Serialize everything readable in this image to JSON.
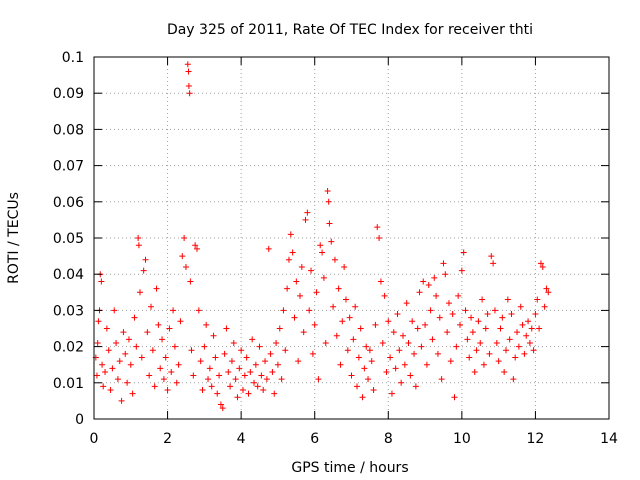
{
  "chart_data": {
    "type": "scatter",
    "title": "Day 325 of 2011, Rate Of TEC Index for receiver thti",
    "xlabel": "GPS time / hours",
    "ylabel": "ROTI / TECUs",
    "xlim": [
      0,
      14
    ],
    "ylim": [
      0,
      0.1
    ],
    "xticks": [
      "0",
      "2",
      "4",
      "6",
      "8",
      "10",
      "12",
      "14"
    ],
    "yticks": [
      "0",
      "0.01",
      "0.02",
      "0.03",
      "0.04",
      "0.05",
      "0.06",
      "0.07",
      "0.08",
      "0.09",
      "0.1"
    ],
    "grid": true,
    "marker": "plus",
    "color": "#ff0000",
    "series": [
      {
        "name": "ROTI",
        "points": [
          [
            0.05,
            0.017
          ],
          [
            0.08,
            0.012
          ],
          [
            0.1,
            0.021
          ],
          [
            0.12,
            0.027
          ],
          [
            0.15,
            0.03
          ],
          [
            0.17,
            0.04
          ],
          [
            0.2,
            0.038
          ],
          [
            0.22,
            0.015
          ],
          [
            0.25,
            0.009
          ],
          [
            0.3,
            0.013
          ],
          [
            0.35,
            0.025
          ],
          [
            0.4,
            0.019
          ],
          [
            0.45,
            0.008
          ],
          [
            0.5,
            0.014
          ],
          [
            0.55,
            0.03
          ],
          [
            0.6,
            0.021
          ],
          [
            0.65,
            0.011
          ],
          [
            0.7,
            0.016
          ],
          [
            0.75,
            0.005
          ],
          [
            0.8,
            0.024
          ],
          [
            0.85,
            0.018
          ],
          [
            0.9,
            0.01
          ],
          [
            0.95,
            0.022
          ],
          [
            1.0,
            0.015
          ],
          [
            1.05,
            0.007
          ],
          [
            1.1,
            0.028
          ],
          [
            1.15,
            0.02
          ],
          [
            1.2,
            0.05
          ],
          [
            1.22,
            0.048
          ],
          [
            1.25,
            0.035
          ],
          [
            1.3,
            0.017
          ],
          [
            1.35,
            0.041
          ],
          [
            1.4,
            0.044
          ],
          [
            1.45,
            0.024
          ],
          [
            1.5,
            0.012
          ],
          [
            1.55,
            0.031
          ],
          [
            1.6,
            0.019
          ],
          [
            1.65,
            0.009
          ],
          [
            1.7,
            0.036
          ],
          [
            1.75,
            0.026
          ],
          [
            1.8,
            0.014
          ],
          [
            1.85,
            0.022
          ],
          [
            1.9,
            0.011
          ],
          [
            1.95,
            0.017
          ],
          [
            2.0,
            0.008
          ],
          [
            2.05,
            0.025
          ],
          [
            2.1,
            0.013
          ],
          [
            2.15,
            0.03
          ],
          [
            2.2,
            0.02
          ],
          [
            2.25,
            0.01
          ],
          [
            2.3,
            0.015
          ],
          [
            2.35,
            0.027
          ],
          [
            2.4,
            0.045
          ],
          [
            2.45,
            0.05
          ],
          [
            2.5,
            0.042
          ],
          [
            2.55,
            0.098
          ],
          [
            2.57,
            0.096
          ],
          [
            2.58,
            0.092
          ],
          [
            2.6,
            0.09
          ],
          [
            2.62,
            0.038
          ],
          [
            2.65,
            0.019
          ],
          [
            2.7,
            0.012
          ],
          [
            2.75,
            0.048
          ],
          [
            2.8,
            0.047
          ],
          [
            2.85,
            0.03
          ],
          [
            2.9,
            0.016
          ],
          [
            2.95,
            0.008
          ],
          [
            3.0,
            0.02
          ],
          [
            3.05,
            0.026
          ],
          [
            3.1,
            0.011
          ],
          [
            3.15,
            0.014
          ],
          [
            3.2,
            0.009
          ],
          [
            3.25,
            0.023
          ],
          [
            3.3,
            0.017
          ],
          [
            3.35,
            0.007
          ],
          [
            3.4,
            0.012
          ],
          [
            3.45,
            0.004
          ],
          [
            3.5,
            0.003
          ],
          [
            3.55,
            0.018
          ],
          [
            3.6,
            0.025
          ],
          [
            3.65,
            0.013
          ],
          [
            3.7,
            0.009
          ],
          [
            3.75,
            0.016
          ],
          [
            3.8,
            0.021
          ],
          [
            3.85,
            0.011
          ],
          [
            3.9,
            0.006
          ],
          [
            3.95,
            0.014
          ],
          [
            4.0,
            0.019
          ],
          [
            4.05,
            0.008
          ],
          [
            4.1,
            0.012
          ],
          [
            4.15,
            0.017
          ],
          [
            4.2,
            0.007
          ],
          [
            4.25,
            0.013
          ],
          [
            4.3,
            0.022
          ],
          [
            4.35,
            0.01
          ],
          [
            4.4,
            0.015
          ],
          [
            4.45,
            0.009
          ],
          [
            4.5,
            0.02
          ],
          [
            4.55,
            0.012
          ],
          [
            4.6,
            0.008
          ],
          [
            4.65,
            0.016
          ],
          [
            4.7,
            0.011
          ],
          [
            4.75,
            0.047
          ],
          [
            4.8,
            0.018
          ],
          [
            4.85,
            0.013
          ],
          [
            4.9,
            0.007
          ],
          [
            4.95,
            0.021
          ],
          [
            5.0,
            0.015
          ],
          [
            5.05,
            0.025
          ],
          [
            5.1,
            0.011
          ],
          [
            5.15,
            0.03
          ],
          [
            5.2,
            0.019
          ],
          [
            5.25,
            0.036
          ],
          [
            5.3,
            0.044
          ],
          [
            5.35,
            0.051
          ],
          [
            5.4,
            0.046
          ],
          [
            5.45,
            0.028
          ],
          [
            5.5,
            0.038
          ],
          [
            5.55,
            0.016
          ],
          [
            5.6,
            0.034
          ],
          [
            5.65,
            0.042
          ],
          [
            5.7,
            0.024
          ],
          [
            5.75,
            0.055
          ],
          [
            5.8,
            0.057
          ],
          [
            5.85,
            0.03
          ],
          [
            5.9,
            0.041
          ],
          [
            5.95,
            0.018
          ],
          [
            6.0,
            0.026
          ],
          [
            6.05,
            0.035
          ],
          [
            6.1,
            0.011
          ],
          [
            6.15,
            0.048
          ],
          [
            6.2,
            0.046
          ],
          [
            6.25,
            0.039
          ],
          [
            6.3,
            0.021
          ],
          [
            6.35,
            0.063
          ],
          [
            6.38,
            0.06
          ],
          [
            6.4,
            0.054
          ],
          [
            6.45,
            0.049
          ],
          [
            6.5,
            0.031
          ],
          [
            6.55,
            0.044
          ],
          [
            6.6,
            0.023
          ],
          [
            6.65,
            0.036
          ],
          [
            6.7,
            0.015
          ],
          [
            6.75,
            0.027
          ],
          [
            6.8,
            0.042
          ],
          [
            6.85,
            0.033
          ],
          [
            6.9,
            0.019
          ],
          [
            6.95,
            0.028
          ],
          [
            7.0,
            0.012
          ],
          [
            7.05,
            0.022
          ],
          [
            7.1,
            0.031
          ],
          [
            7.15,
            0.009
          ],
          [
            7.2,
            0.017
          ],
          [
            7.25,
            0.025
          ],
          [
            7.3,
            0.006
          ],
          [
            7.35,
            0.014
          ],
          [
            7.4,
            0.02
          ],
          [
            7.45,
            0.011
          ],
          [
            7.5,
            0.019
          ],
          [
            7.55,
            0.016
          ],
          [
            7.6,
            0.008
          ],
          [
            7.65,
            0.026
          ],
          [
            7.7,
            0.053
          ],
          [
            7.75,
            0.05
          ],
          [
            7.8,
            0.038
          ],
          [
            7.85,
            0.021
          ],
          [
            7.9,
            0.034
          ],
          [
            7.95,
            0.013
          ],
          [
            8.0,
            0.027
          ],
          [
            8.05,
            0.017
          ],
          [
            8.1,
            0.007
          ],
          [
            8.15,
            0.024
          ],
          [
            8.2,
            0.014
          ],
          [
            8.25,
            0.029
          ],
          [
            8.3,
            0.019
          ],
          [
            8.35,
            0.01
          ],
          [
            8.4,
            0.023
          ],
          [
            8.45,
            0.015
          ],
          [
            8.5,
            0.032
          ],
          [
            8.55,
            0.021
          ],
          [
            8.6,
            0.012
          ],
          [
            8.65,
            0.027
          ],
          [
            8.7,
            0.018
          ],
          [
            8.75,
            0.009
          ],
          [
            8.8,
            0.025
          ],
          [
            8.85,
            0.035
          ],
          [
            8.9,
            0.02
          ],
          [
            8.95,
            0.038
          ],
          [
            9.0,
            0.026
          ],
          [
            9.05,
            0.015
          ],
          [
            9.1,
            0.037
          ],
          [
            9.15,
            0.03
          ],
          [
            9.2,
            0.022
          ],
          [
            9.25,
            0.039
          ],
          [
            9.3,
            0.034
          ],
          [
            9.35,
            0.018
          ],
          [
            9.4,
            0.028
          ],
          [
            9.45,
            0.011
          ],
          [
            9.5,
            0.043
          ],
          [
            9.55,
            0.04
          ],
          [
            9.6,
            0.024
          ],
          [
            9.65,
            0.032
          ],
          [
            9.7,
            0.016
          ],
          [
            9.75,
            0.029
          ],
          [
            9.8,
            0.006
          ],
          [
            9.85,
            0.02
          ],
          [
            9.9,
            0.034
          ],
          [
            9.95,
            0.026
          ],
          [
            10.0,
            0.041
          ],
          [
            10.05,
            0.046
          ],
          [
            10.1,
            0.03
          ],
          [
            10.15,
            0.022
          ],
          [
            10.2,
            0.017
          ],
          [
            10.25,
            0.028
          ],
          [
            10.3,
            0.024
          ],
          [
            10.35,
            0.013
          ],
          [
            10.4,
            0.019
          ],
          [
            10.45,
            0.027
          ],
          [
            10.5,
            0.021
          ],
          [
            10.55,
            0.033
          ],
          [
            10.6,
            0.015
          ],
          [
            10.65,
            0.025
          ],
          [
            10.7,
            0.029
          ],
          [
            10.75,
            0.018
          ],
          [
            10.8,
            0.045
          ],
          [
            10.85,
            0.043
          ],
          [
            10.9,
            0.03
          ],
          [
            10.95,
            0.021
          ],
          [
            11.0,
            0.016
          ],
          [
            11.05,
            0.025
          ],
          [
            11.1,
            0.028
          ],
          [
            11.15,
            0.013
          ],
          [
            11.2,
            0.019
          ],
          [
            11.25,
            0.033
          ],
          [
            11.3,
            0.022
          ],
          [
            11.35,
            0.029
          ],
          [
            11.4,
            0.011
          ],
          [
            11.45,
            0.017
          ],
          [
            11.5,
            0.024
          ],
          [
            11.55,
            0.02
          ],
          [
            11.6,
            0.031
          ],
          [
            11.65,
            0.026
          ],
          [
            11.7,
            0.018
          ],
          [
            11.75,
            0.023
          ],
          [
            11.8,
            0.027
          ],
          [
            11.85,
            0.021
          ],
          [
            11.9,
            0.025
          ],
          [
            11.95,
            0.019
          ],
          [
            12.0,
            0.029
          ],
          [
            12.05,
            0.033
          ],
          [
            12.1,
            0.025
          ],
          [
            12.15,
            0.043
          ],
          [
            12.2,
            0.042
          ],
          [
            12.25,
            0.031
          ],
          [
            12.3,
            0.036
          ],
          [
            12.35,
            0.035
          ]
        ]
      }
    ]
  }
}
